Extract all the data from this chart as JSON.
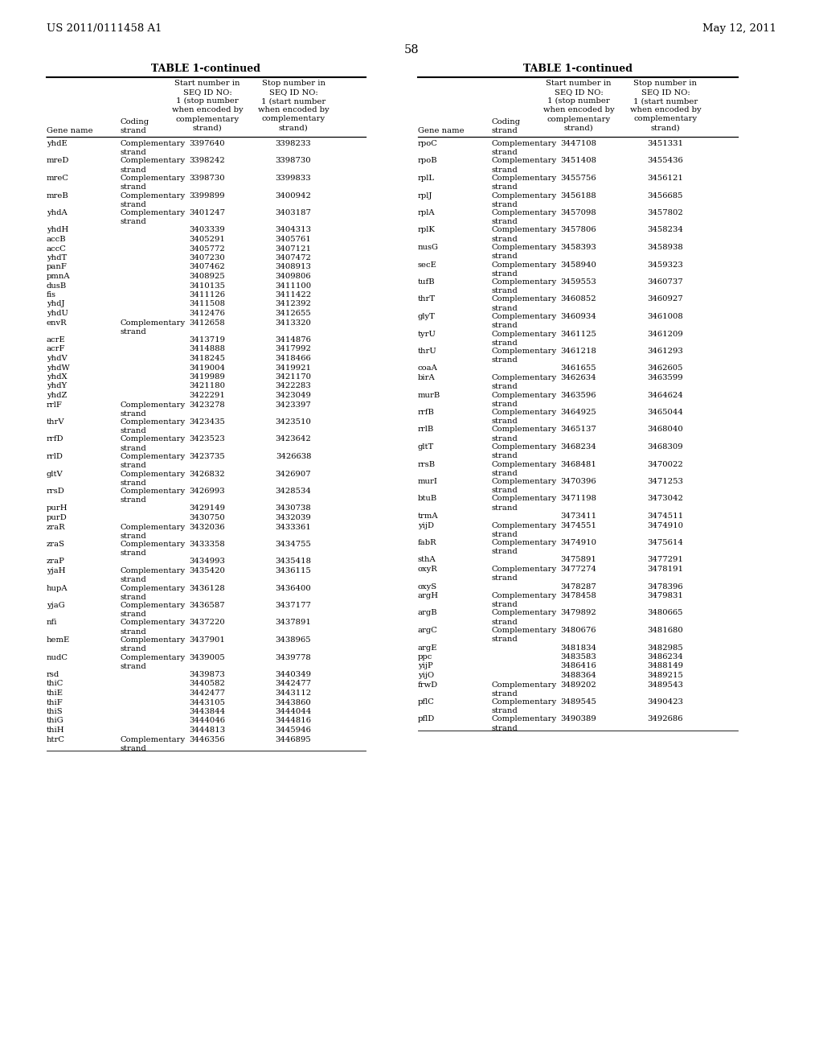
{
  "header_left": "US 2011/0111458 A1",
  "header_right": "May 12, 2011",
  "page_number": "58",
  "table_title": "TABLE 1-continued",
  "background_color": "#ffffff",
  "text_color": "#000000",
  "left_table": [
    [
      "yhdE",
      "Complementary\nstrand",
      "3397640",
      "3398233"
    ],
    [
      "mreD",
      "Complementary\nstrand",
      "3398242",
      "3398730"
    ],
    [
      "mreC",
      "Complementary\nstrand",
      "3398730",
      "3399833"
    ],
    [
      "mreB",
      "Complementary\nstrand",
      "3399899",
      "3400942"
    ],
    [
      "yhdA",
      "Complementary\nstrand",
      "3401247",
      "3403187"
    ],
    [
      "yhdH",
      "",
      "3403339",
      "3404313"
    ],
    [
      "accB",
      "",
      "3405291",
      "3405761"
    ],
    [
      "accC",
      "",
      "3405772",
      "3407121"
    ],
    [
      "yhdT",
      "",
      "3407230",
      "3407472"
    ],
    [
      "panF",
      "",
      "3407462",
      "3408913"
    ],
    [
      "pmnA",
      "",
      "3408925",
      "3409806"
    ],
    [
      "dusB",
      "",
      "3410135",
      "3411100"
    ],
    [
      "fis",
      "",
      "3411126",
      "3411422"
    ],
    [
      "yhdJ",
      "",
      "3411508",
      "3412392"
    ],
    [
      "yhdU",
      "",
      "3412476",
      "3412655"
    ],
    [
      "envR",
      "Complementary\nstrand",
      "3412658",
      "3413320"
    ],
    [
      "acrE",
      "",
      "3413719",
      "3414876"
    ],
    [
      "acrF",
      "",
      "3414888",
      "3417992"
    ],
    [
      "yhdV",
      "",
      "3418245",
      "3418466"
    ],
    [
      "yhdW",
      "",
      "3419004",
      "3419921"
    ],
    [
      "yhdX",
      "",
      "3419989",
      "3421170"
    ],
    [
      "yhdY",
      "",
      "3421180",
      "3422283"
    ],
    [
      "yhdZ",
      "",
      "3422291",
      "3423049"
    ],
    [
      "rrlF",
      "Complementary\nstrand",
      "3423278",
      "3423397"
    ],
    [
      "thrV",
      "Complementary\nstrand",
      "3423435",
      "3423510"
    ],
    [
      "rrfD",
      "Complementary\nstrand",
      "3423523",
      "3423642"
    ],
    [
      "rrlD",
      "Complementary\nstrand",
      "3423735",
      "3426638"
    ],
    [
      "gltV",
      "Complementary\nstrand",
      "3426832",
      "3426907"
    ],
    [
      "rrsD",
      "Complementary\nstrand",
      "3426993",
      "3428534"
    ],
    [
      "purH",
      "",
      "3429149",
      "3430738"
    ],
    [
      "purD",
      "",
      "3430750",
      "3432039"
    ],
    [
      "zraR",
      "Complementary\nstrand",
      "3432036",
      "3433361"
    ],
    [
      "zraS",
      "Complementary\nstrand",
      "3433358",
      "3434755"
    ],
    [
      "zraP",
      "",
      "3434993",
      "3435418"
    ],
    [
      "yjaH",
      "Complementary\nstrand",
      "3435420",
      "3436115"
    ],
    [
      "hupA",
      "Complementary\nstrand",
      "3436128",
      "3436400"
    ],
    [
      "yjaG",
      "Complementary\nstrand",
      "3436587",
      "3437177"
    ],
    [
      "nfi",
      "Complementary\nstrand",
      "3437220",
      "3437891"
    ],
    [
      "hemE",
      "Complementary\nstrand",
      "3437901",
      "3438965"
    ],
    [
      "nudC",
      "Complementary\nstrand",
      "3439005",
      "3439778"
    ],
    [
      "rsd",
      "",
      "3439873",
      "3440349"
    ],
    [
      "thiC",
      "",
      "3440582",
      "3442477"
    ],
    [
      "thiE",
      "",
      "3442477",
      "3443112"
    ],
    [
      "thiF",
      "",
      "3443105",
      "3443860"
    ],
    [
      "thiS",
      "",
      "3443844",
      "3444044"
    ],
    [
      "thiG",
      "",
      "3444046",
      "3444816"
    ],
    [
      "thiH",
      "",
      "3444813",
      "3445946"
    ],
    [
      "htrC",
      "Complementary\nstrand",
      "3446356",
      "3446895"
    ]
  ],
  "right_table": [
    [
      "rpoC",
      "Complementary\nstrand",
      "3447108",
      "3451331"
    ],
    [
      "rpoB",
      "Complementary\nstrand",
      "3451408",
      "3455436"
    ],
    [
      "rplL",
      "Complementary\nstrand",
      "3455756",
      "3456121"
    ],
    [
      "rplJ",
      "Complementary\nstrand",
      "3456188",
      "3456685"
    ],
    [
      "rplA",
      "Complementary\nstrand",
      "3457098",
      "3457802"
    ],
    [
      "rplK",
      "Complementary\nstrand",
      "3457806",
      "3458234"
    ],
    [
      "nusG",
      "Complementary\nstrand",
      "3458393",
      "3458938"
    ],
    [
      "secE",
      "Complementary\nstrand",
      "3458940",
      "3459323"
    ],
    [
      "tufB",
      "Complementary\nstrand",
      "3459553",
      "3460737"
    ],
    [
      "thrT",
      "Complementary\nstrand",
      "3460852",
      "3460927"
    ],
    [
      "glyT",
      "Complementary\nstrand",
      "3460934",
      "3461008"
    ],
    [
      "tyrU",
      "Complementary\nstrand",
      "3461125",
      "3461209"
    ],
    [
      "thrU",
      "Complementary\nstrand",
      "3461218",
      "3461293"
    ],
    [
      "coaA",
      "",
      "3461655",
      "3462605"
    ],
    [
      "birA",
      "Complementary\nstrand",
      "3462634",
      "3463599"
    ],
    [
      "murB",
      "Complementary\nstrand",
      "3463596",
      "3464624"
    ],
    [
      "rrfB",
      "Complementary\nstrand",
      "3464925",
      "3465044"
    ],
    [
      "rrlB",
      "Complementary\nstrand",
      "3465137",
      "3468040"
    ],
    [
      "gltT",
      "Complementary\nstrand",
      "3468234",
      "3468309"
    ],
    [
      "rrsB",
      "Complementary\nstrand",
      "3468481",
      "3470022"
    ],
    [
      "murI",
      "Complementary\nstrand",
      "3470396",
      "3471253"
    ],
    [
      "btuB",
      "Complementary\nstrand",
      "3471198",
      "3473042"
    ],
    [
      "trmA",
      "",
      "3473411",
      "3474511"
    ],
    [
      "yijD",
      "Complementary\nstrand",
      "3474551",
      "3474910"
    ],
    [
      "fabR",
      "Complementary\nstrand",
      "3474910",
      "3475614"
    ],
    [
      "sthA",
      "",
      "3475891",
      "3477291"
    ],
    [
      "oxyR",
      "Complementary\nstrand",
      "3477274",
      "3478191"
    ],
    [
      "oxyS",
      "",
      "3478287",
      "3478396"
    ],
    [
      "argH",
      "Complementary\nstrand",
      "3478458",
      "3479831"
    ],
    [
      "argB",
      "Complementary\nstrand",
      "3479892",
      "3480665"
    ],
    [
      "argC",
      "Complementary\nstrand",
      "3480676",
      "3481680"
    ],
    [
      "argE",
      "",
      "3481834",
      "3482985"
    ],
    [
      "ppc",
      "",
      "3483583",
      "3486234"
    ],
    [
      "yijP",
      "",
      "3486416",
      "3488149"
    ],
    [
      "yijO",
      "",
      "3488364",
      "3489215"
    ],
    [
      "frwD",
      "Complementary\nstrand",
      "3489202",
      "3489543"
    ],
    [
      "pflC",
      "Complementary\nstrand",
      "3489545",
      "3490423"
    ],
    [
      "pflD",
      "Complementary\nstrand",
      "3490389",
      "3492686"
    ]
  ]
}
